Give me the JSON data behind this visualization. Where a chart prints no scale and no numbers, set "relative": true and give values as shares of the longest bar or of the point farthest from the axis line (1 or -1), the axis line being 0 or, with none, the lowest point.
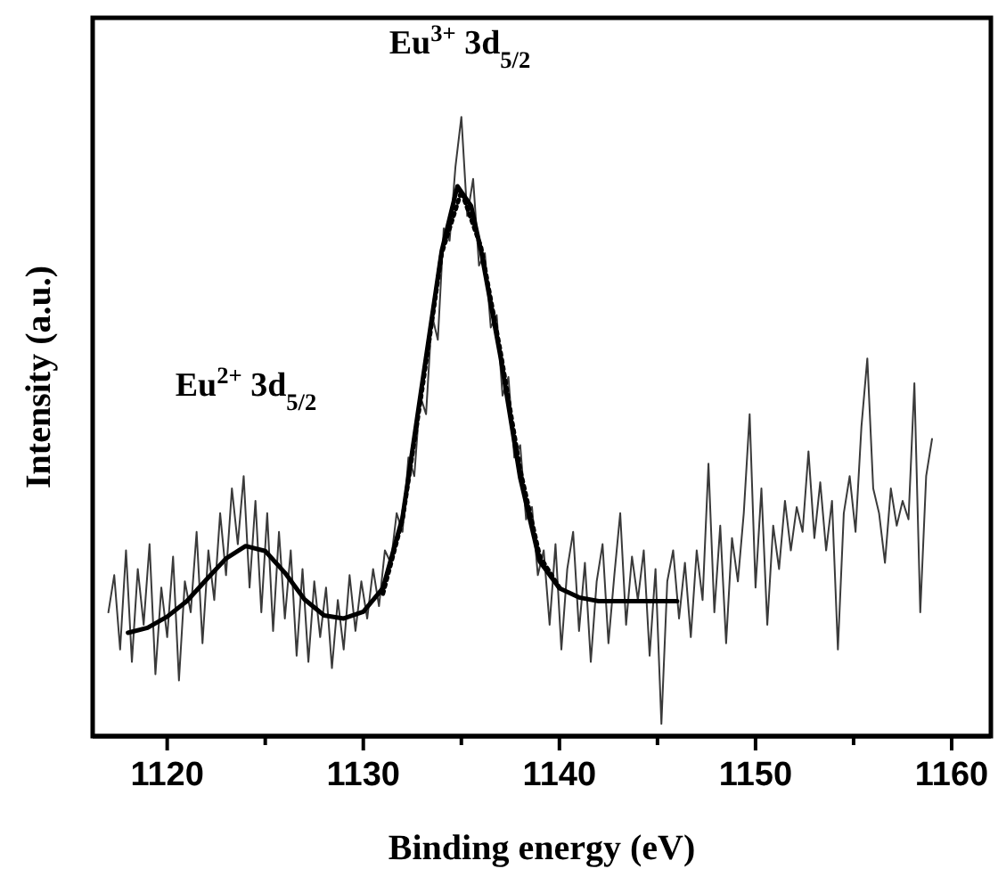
{
  "chart_data": {
    "type": "line",
    "relative": true,
    "xlabel": "Binding energy (eV)",
    "ylabel": "Intensity (a.u.)",
    "xlim": [
      1116.2,
      1162
    ],
    "xticks": [
      1120,
      {
        "value": 1125,
        "label": null
      },
      1130,
      {
        "value": 1135,
        "label": null
      },
      1140,
      {
        "value": 1145,
        "label": null
      },
      1150,
      {
        "value": 1155,
        "label": null
      },
      1160
    ],
    "annotations": [
      "Eu$^{3+}$ 3d$_{5/2}$",
      "Eu$^{2+}$ 3d$_{5/2}$"
    ],
    "series": [
      {
        "color": "#3a3a3a",
        "line_style": "solid",
        "x": [
          1117.0,
          1117.3,
          1117.6,
          1117.9,
          1118.2,
          1118.5,
          1118.8,
          1119.1,
          1119.4,
          1119.7,
          1120.0,
          1120.3,
          1120.6,
          1120.9,
          1121.2,
          1121.5,
          1121.8,
          1122.1,
          1122.4,
          1122.7,
          1123.0,
          1123.3,
          1123.6,
          1123.9,
          1124.2,
          1124.5,
          1124.8,
          1125.1,
          1125.4,
          1125.7,
          1126.0,
          1126.3,
          1126.6,
          1126.9,
          1127.2,
          1127.5,
          1127.8,
          1128.1,
          1128.4,
          1128.7,
          1129.0,
          1129.3,
          1129.6,
          1129.9,
          1130.2,
          1130.5,
          1130.8,
          1131.1,
          1131.4,
          1131.7,
          1132.0,
          1132.3,
          1132.6,
          1132.9,
          1133.2,
          1133.5,
          1133.8,
          1134.1,
          1134.4,
          1134.7,
          1135.0,
          1135.3,
          1135.6,
          1135.9,
          1136.2,
          1136.5,
          1136.8,
          1137.1,
          1137.4,
          1137.7,
          1138.0,
          1138.3,
          1138.6,
          1138.9,
          1139.2,
          1139.5,
          1139.8,
          1140.1,
          1140.4,
          1140.7,
          1141.0,
          1141.3,
          1141.6,
          1141.9,
          1142.2,
          1142.5,
          1142.8,
          1143.1,
          1143.4,
          1143.7,
          1144.0,
          1144.3,
          1144.6,
          1144.9,
          1145.2,
          1145.5,
          1145.8,
          1146.1,
          1146.4,
          1146.7,
          1147.0,
          1147.3,
          1147.6,
          1147.9,
          1148.2,
          1148.5,
          1148.8,
          1149.1,
          1149.4,
          1149.7,
          1150.0,
          1150.3,
          1150.6,
          1150.9,
          1151.2,
          1151.5,
          1151.8,
          1152.1,
          1152.4,
          1152.7,
          1153.0,
          1153.3,
          1153.6,
          1153.9,
          1154.2,
          1154.5,
          1154.8,
          1155.1,
          1155.4,
          1155.7,
          1156.0,
          1156.3,
          1156.6,
          1156.9,
          1157.2,
          1157.5,
          1157.8,
          1158.1,
          1158.4,
          1158.7,
          1159.0
        ],
        "values": [
          0.2,
          0.26,
          0.14,
          0.3,
          0.12,
          0.27,
          0.18,
          0.31,
          0.1,
          0.24,
          0.16,
          0.29,
          0.09,
          0.25,
          0.2,
          0.33,
          0.15,
          0.3,
          0.22,
          0.36,
          0.26,
          0.4,
          0.31,
          0.42,
          0.24,
          0.38,
          0.2,
          0.36,
          0.17,
          0.33,
          0.19,
          0.3,
          0.13,
          0.27,
          0.12,
          0.25,
          0.16,
          0.24,
          0.11,
          0.22,
          0.14,
          0.26,
          0.17,
          0.25,
          0.19,
          0.27,
          0.21,
          0.3,
          0.28,
          0.36,
          0.33,
          0.45,
          0.42,
          0.55,
          0.52,
          0.68,
          0.64,
          0.82,
          0.8,
          0.92,
          1.0,
          0.84,
          0.9,
          0.76,
          0.78,
          0.66,
          0.68,
          0.55,
          0.58,
          0.45,
          0.47,
          0.35,
          0.37,
          0.26,
          0.3,
          0.18,
          0.31,
          0.14,
          0.27,
          0.33,
          0.17,
          0.28,
          0.12,
          0.25,
          0.31,
          0.15,
          0.26,
          0.36,
          0.18,
          0.29,
          0.22,
          0.3,
          0.13,
          0.27,
          0.02,
          0.25,
          0.3,
          0.19,
          0.28,
          0.16,
          0.3,
          0.22,
          0.44,
          0.2,
          0.34,
          0.15,
          0.32,
          0.25,
          0.36,
          0.52,
          0.24,
          0.4,
          0.18,
          0.34,
          0.27,
          0.38,
          0.3,
          0.37,
          0.33,
          0.46,
          0.32,
          0.41,
          0.3,
          0.38,
          0.14,
          0.36,
          0.42,
          0.33,
          0.5,
          0.61,
          0.4,
          0.36,
          0.28,
          0.4,
          0.34,
          0.38,
          0.35,
          0.57,
          0.2,
          0.42,
          0.48
        ]
      },
      {
        "color": "#000000",
        "line_style": "dotted",
        "x": [
          1131,
          1132,
          1133,
          1134,
          1135,
          1136,
          1137,
          1138,
          1139,
          1140
        ],
        "values": [
          0.23,
          0.35,
          0.56,
          0.78,
          0.88,
          0.79,
          0.62,
          0.43,
          0.29,
          0.24
        ]
      },
      {
        "color": "#000000",
        "line_style": "solid",
        "x": [
          1118,
          1119,
          1120,
          1121,
          1122,
          1123,
          1124,
          1125,
          1126,
          1127,
          1128,
          1129,
          1130,
          1131,
          1132,
          1133,
          1134,
          1134.8,
          1135.5,
          1136,
          1137,
          1138,
          1139,
          1140,
          1141,
          1142,
          1146
        ],
        "values": [
          0.167,
          0.175,
          0.193,
          0.218,
          0.253,
          0.287,
          0.307,
          0.299,
          0.264,
          0.221,
          0.195,
          0.19,
          0.201,
          0.239,
          0.353,
          0.569,
          0.784,
          0.888,
          0.856,
          0.784,
          0.612,
          0.417,
          0.282,
          0.239,
          0.224,
          0.218,
          0.218
        ]
      }
    ]
  }
}
